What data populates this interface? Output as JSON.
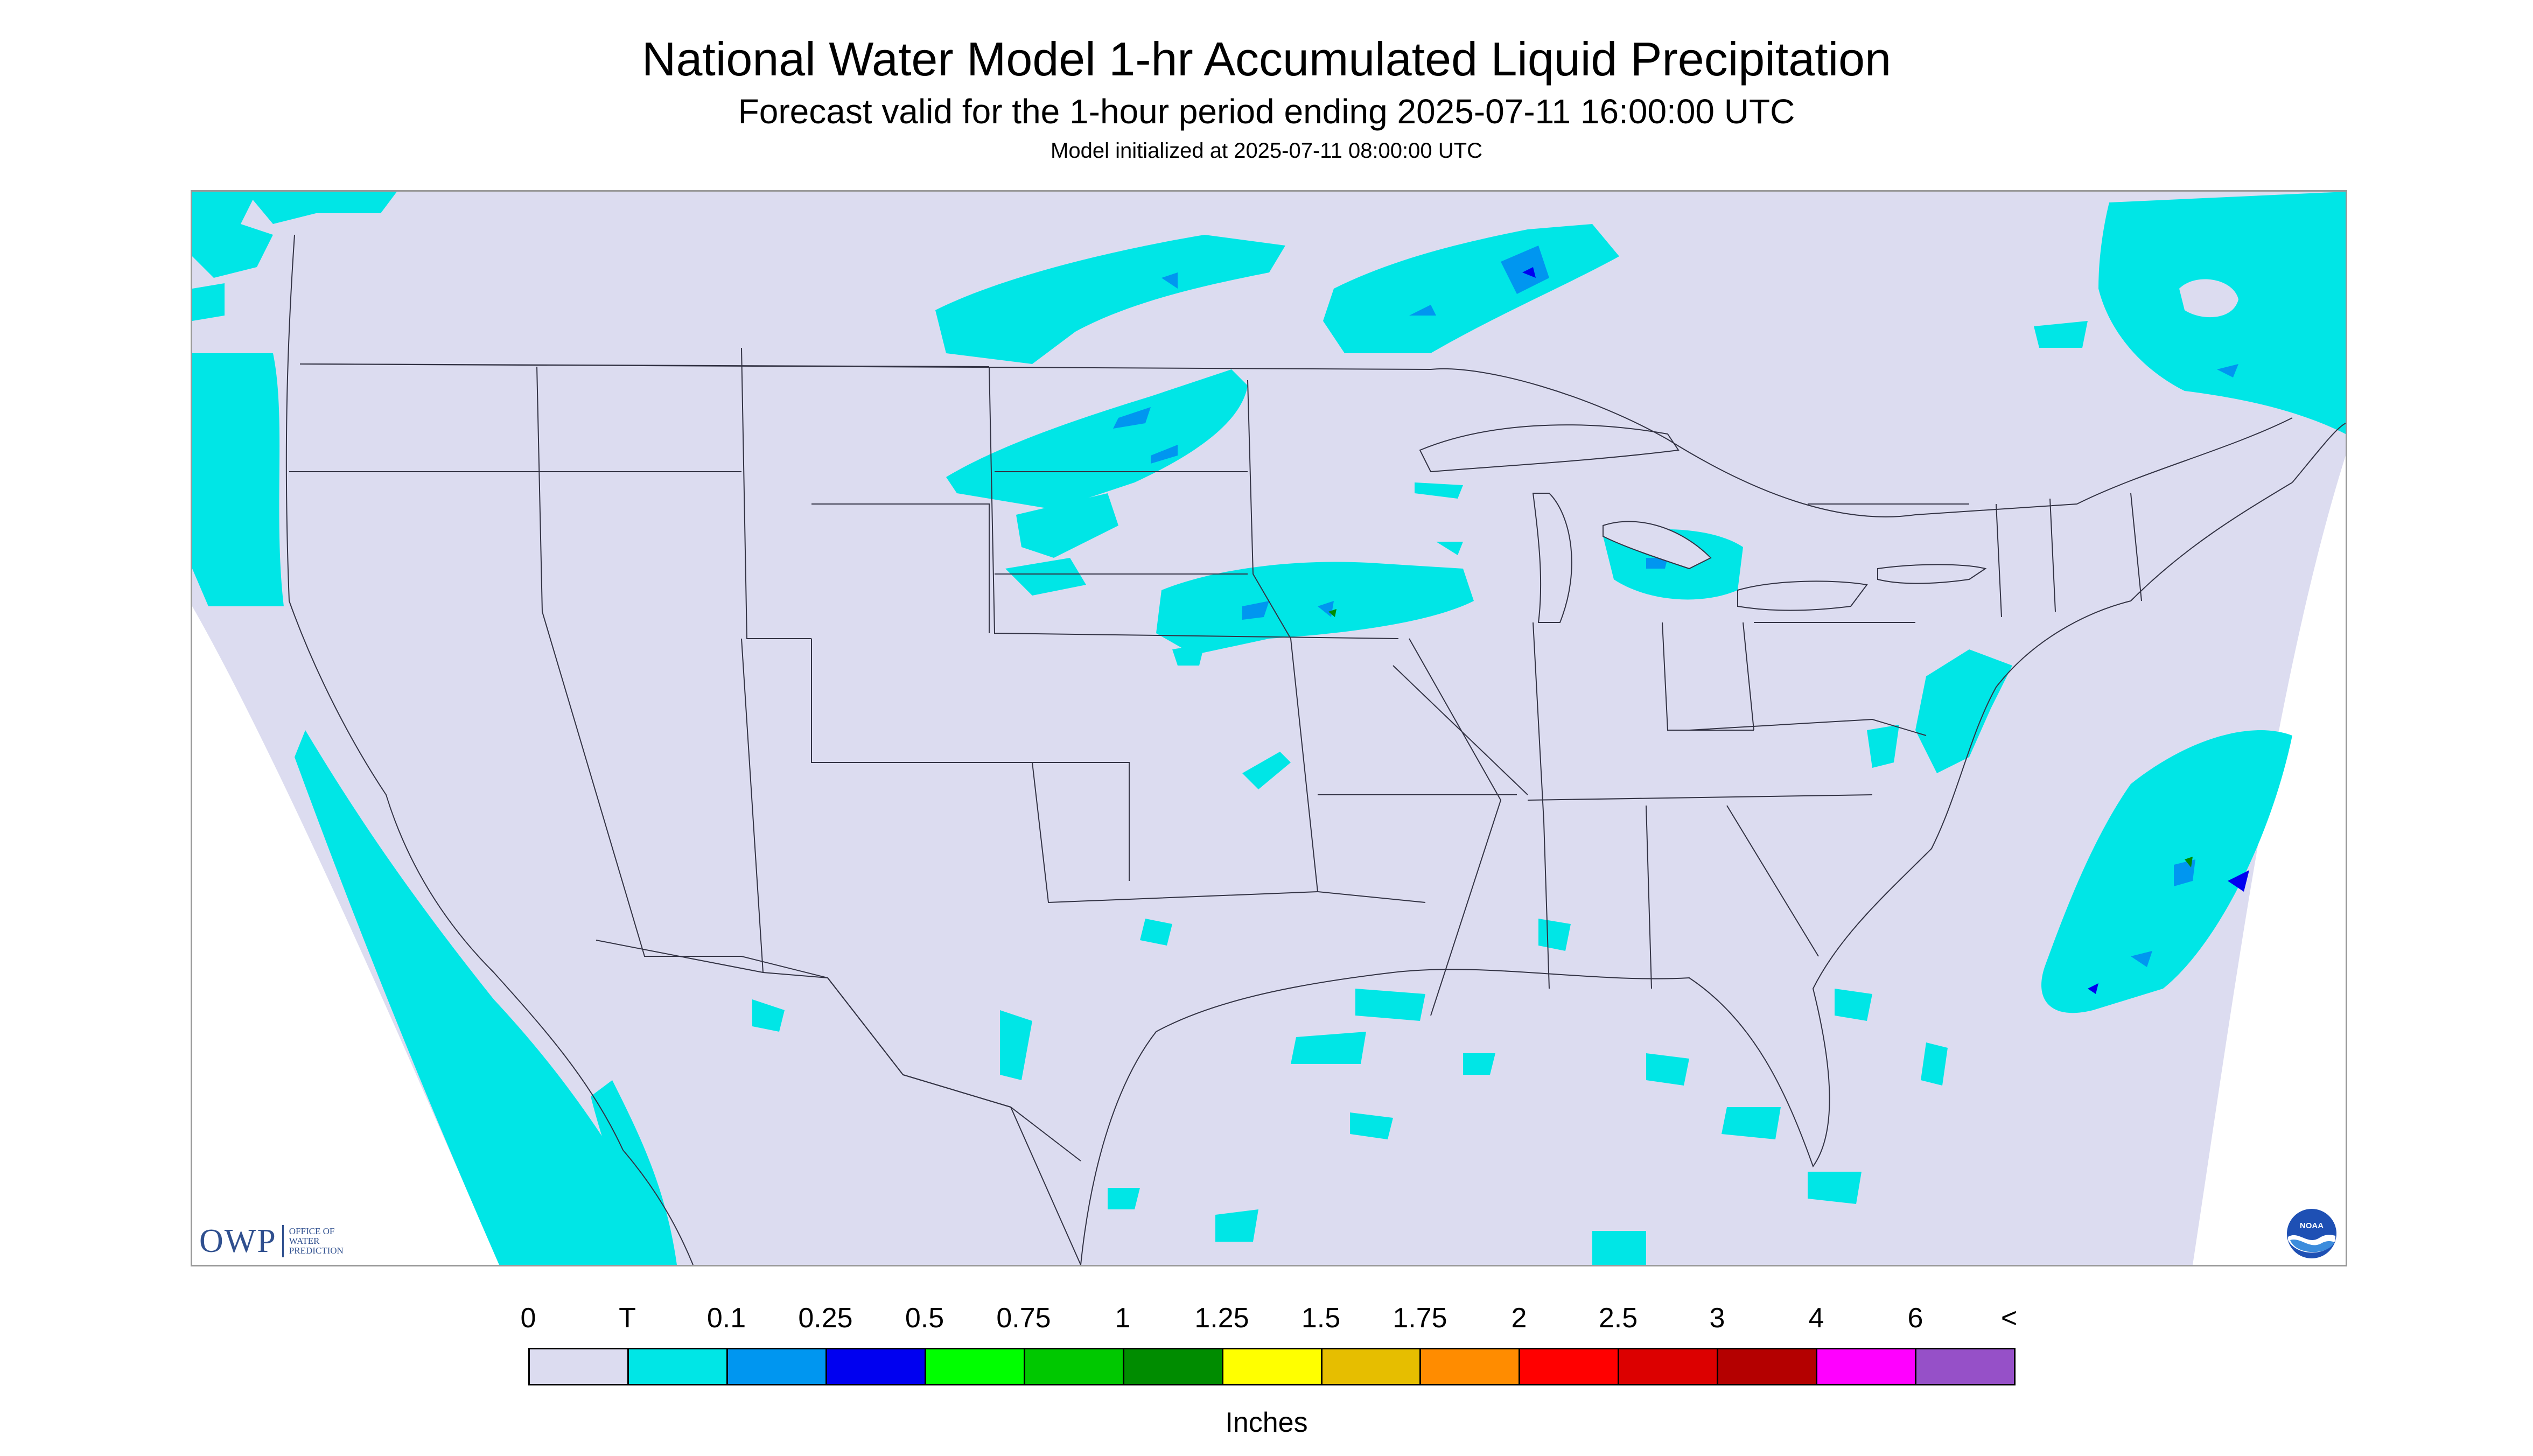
{
  "header": {
    "title": "National Water Model 1-hr Accumulated Liquid Precipitation",
    "subtitle": "Forecast valid for the 1-hour period ending 2025-07-11 16:00:00 UTC",
    "init": "Model initialized at 2025-07-11 08:00:00 UTC"
  },
  "logos": {
    "owp_mark": "OWP",
    "owp_text": "Office of Water Prediction",
    "noaa_text": "NOAA"
  },
  "legend": {
    "ticks": [
      "0",
      "T",
      "0.1",
      "0.25",
      "0.5",
      "0.75",
      "1",
      "1.25",
      "1.5",
      "1.75",
      "2",
      "2.5",
      "3",
      "4",
      "6",
      "<"
    ],
    "colors": [
      "#dcdcf0",
      "#00e6e6",
      "#0096f0",
      "#0000f0",
      "#00ff00",
      "#00c800",
      "#008c00",
      "#ffff00",
      "#e6be00",
      "#ff8c00",
      "#ff0000",
      "#dc0000",
      "#b40000",
      "#ff00ff",
      "#9650c8"
    ],
    "unit": "Inches"
  },
  "map": {
    "background_color": "#dcdcf0",
    "outside_color": "#ffffff",
    "precip_light_color": "#00e6e6",
    "precip_moderate_color": "#0096f0",
    "precip_heavy_color": "#0000f0",
    "boundary_color": "#333344"
  }
}
